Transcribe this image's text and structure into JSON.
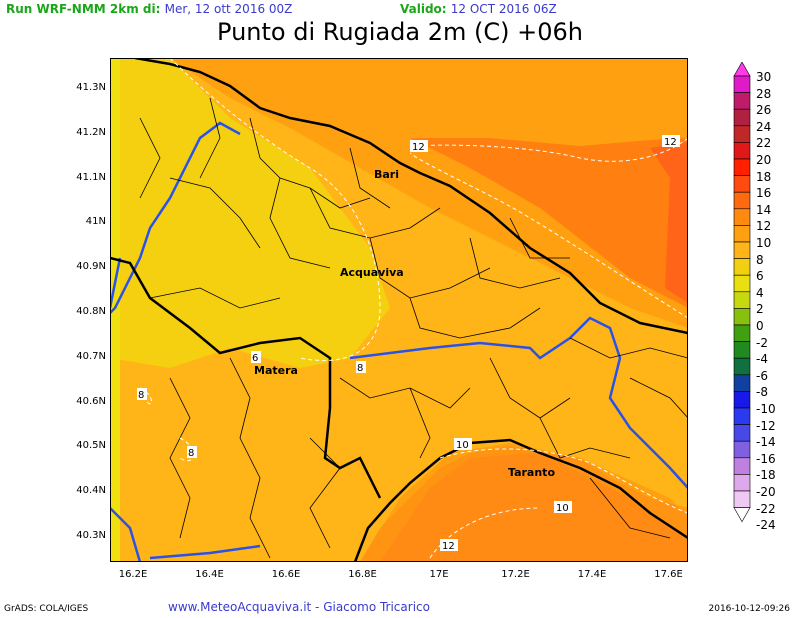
{
  "header": {
    "run_label": "Run WRF-NMM 2km di:",
    "run_date": "Mer, 12 ott 2016 00Z",
    "valid_label": "Valido:",
    "valid_date": "12 OCT 2016 06Z"
  },
  "title": "Punto di Rugiada 2m (C) +06h",
  "lat_ticks": [
    "41.3N",
    "41.2N",
    "41.1N",
    "41N",
    "40.9N",
    "40.8N",
    "40.7N",
    "40.6N",
    "40.5N",
    "40.4N",
    "40.3N"
  ],
  "lon_ticks": [
    "16.2E",
    "16.4E",
    "16.6E",
    "16.8E",
    "17E",
    "17.2E",
    "17.4E",
    "17.6E"
  ],
  "cities": [
    "Bari",
    "Acquaviva",
    "Matera",
    "Taranto"
  ],
  "contour_labels": [
    "12",
    "12",
    "10",
    "10",
    "12",
    "8",
    "8",
    "8",
    "6",
    "8"
  ],
  "colorbar": {
    "values": [
      "30",
      "28",
      "26",
      "24",
      "22",
      "20",
      "18",
      "16",
      "14",
      "12",
      "10",
      "8",
      "6",
      "4",
      "2",
      "0",
      "-2",
      "-4",
      "-6",
      "-8",
      "-10",
      "-12",
      "-14",
      "-16",
      "-18",
      "-20",
      "-22",
      "-24"
    ],
    "colors": [
      "#ff3ce8",
      "#e01ac8",
      "#c01a6a",
      "#b02040",
      "#c02828",
      "#e01818",
      "#ff2000",
      "#ff4a10",
      "#ff6a10",
      "#ff8a10",
      "#ffa010",
      "#ffb418",
      "#f0d010",
      "#e8e010",
      "#c8d810",
      "#88c010",
      "#40a010",
      "#208a20",
      "#107040",
      "#1040a0",
      "#1818e8",
      "#2a3af0",
      "#4848e8",
      "#8060e0",
      "#c080e0",
      "#e0a8ec",
      "#f0c8f4",
      "#ffffff"
    ]
  },
  "footer": {
    "left": "GrADS: COLA/IGES",
    "mid": "www.MeteoAcquaviva.it  -  Giacomo Tricarico",
    "right": "2016-10-12-09:26"
  },
  "fill_colors": {
    "c6": "#f0d010",
    "c8": "#ffb418",
    "c10": "#ffa010",
    "c12": "#ff7a14",
    "c14": "#ff6018",
    "c_light": "#ffc820"
  }
}
